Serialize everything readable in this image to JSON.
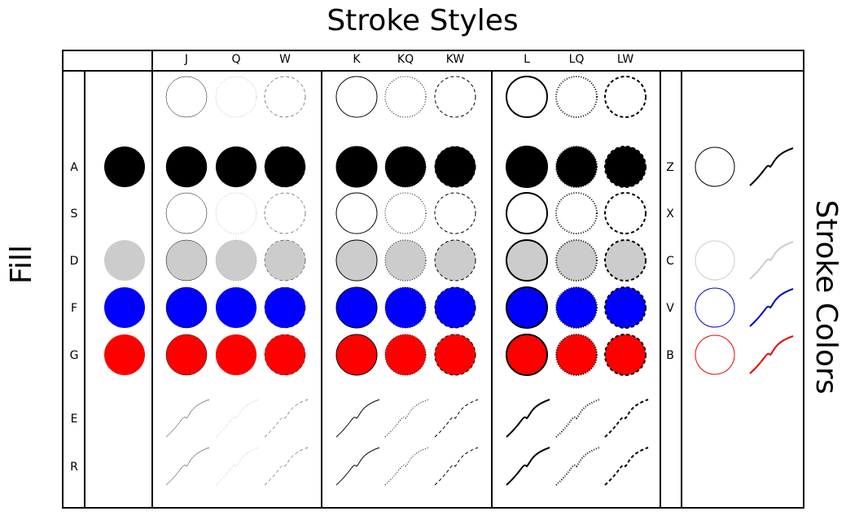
{
  "title": "Stroke Styles",
  "left_label": "Fill",
  "right_label": "Stroke Colors",
  "stroke_styles": [
    {
      "label": "J",
      "width": 0.5,
      "dash": "",
      "opacity": 1
    },
    {
      "label": "Q",
      "width": 0.5,
      "dash": "1 2",
      "opacity": 0.55
    },
    {
      "label": "W",
      "width": 0.5,
      "dash": "4 3",
      "opacity": 1
    },
    {
      "label": "K",
      "width": 1.0,
      "dash": "",
      "opacity": 1
    },
    {
      "label": "KQ",
      "width": 1.0,
      "dash": "1 2",
      "opacity": 1
    },
    {
      "label": "KW",
      "width": 1.0,
      "dash": "4 3",
      "opacity": 1
    },
    {
      "label": "L",
      "width": 2.0,
      "dash": "",
      "opacity": 1
    },
    {
      "label": "LQ",
      "width": 2.0,
      "dash": "1 2",
      "opacity": 1
    },
    {
      "label": "LW",
      "width": 2.0,
      "dash": "4 3",
      "opacity": 1
    }
  ],
  "fill_rows": [
    {
      "label": "",
      "fill": "none",
      "shape": "circle"
    },
    {
      "label": "A",
      "fill": "#000000",
      "shape": "circle"
    },
    {
      "label": "S",
      "fill": "none",
      "shape": "circle"
    },
    {
      "label": "D",
      "fill": "#cccccc",
      "shape": "circle"
    },
    {
      "label": "F",
      "fill": "#0000ff",
      "shape": "circle"
    },
    {
      "label": "G",
      "fill": "#ff0000",
      "shape": "circle"
    },
    {
      "label": "E",
      "fill": "none",
      "shape": "curve"
    },
    {
      "label": "R",
      "fill": "none",
      "shape": "curve"
    }
  ],
  "stroke_color_rows": [
    {
      "label": "",
      "color": ""
    },
    {
      "label": "Z",
      "color": "#000000"
    },
    {
      "label": "X",
      "color": "#ffffff"
    },
    {
      "label": "C",
      "color": "#cccccc"
    },
    {
      "label": "V",
      "color": "#0000cc"
    },
    {
      "label": "B",
      "color": "#ee0000"
    },
    {
      "label": "",
      "color": ""
    },
    {
      "label": "",
      "color": ""
    }
  ]
}
